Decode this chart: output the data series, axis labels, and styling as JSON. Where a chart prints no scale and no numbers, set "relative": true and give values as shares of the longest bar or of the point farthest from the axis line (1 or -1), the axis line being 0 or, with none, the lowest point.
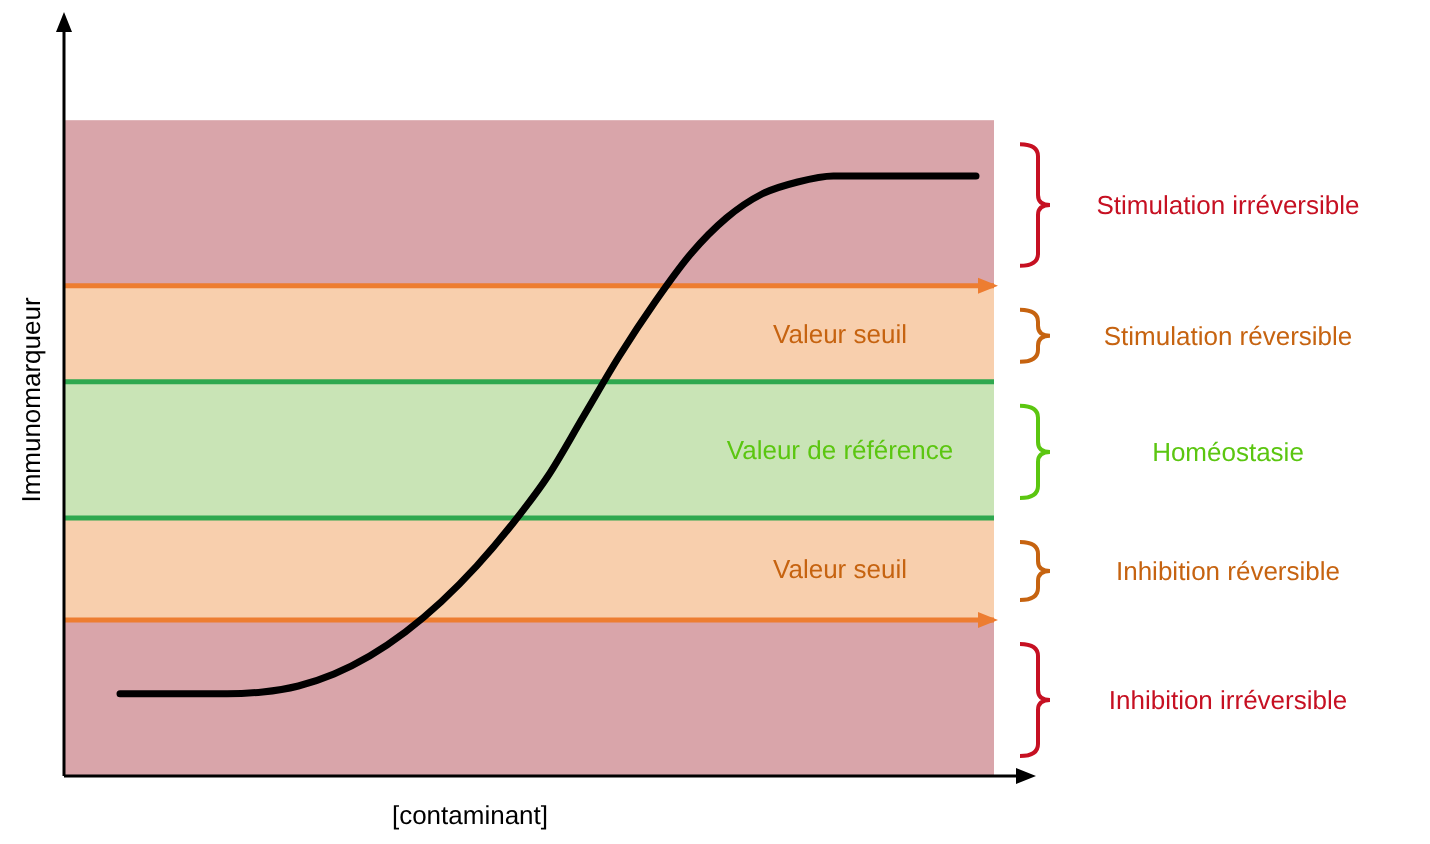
{
  "chart_data": {
    "type": "line",
    "relative": true,
    "xlabel": "[contaminant]",
    "ylabel": "Immunomarqueur",
    "marker": "none",
    "line_style": "solid",
    "categories": [
      null,
      null,
      null,
      null,
      null,
      null,
      null,
      null,
      null,
      null,
      null,
      null,
      null,
      null,
      null,
      null,
      null,
      null,
      null,
      null,
      null,
      null,
      null,
      null,
      null
    ],
    "series": [
      {
        "color": "#000000",
        "values": [
          0.137,
          0.137,
          0.137,
          0.137,
          0.14,
          0.15,
          0.17,
          0.2,
          0.24,
          0.29,
          0.35,
          0.42,
          0.5,
          0.6,
          0.7,
          0.79,
          0.87,
          0.93,
          0.97,
          0.99,
          1,
          1,
          1,
          1,
          1
        ]
      }
    ],
    "bands": [
      {
        "axis": "y",
        "from": 0.817,
        "to": 1.093,
        "color": "#d9a5aa"
      },
      {
        "axis": "y",
        "from": 0.657,
        "to": 0.817,
        "label": "Valeur seuil",
        "color": "#f8cfad"
      },
      {
        "axis": "y",
        "from": 0.43,
        "to": 0.657,
        "label": "Valeur de référence",
        "color": "#c9e4b6"
      },
      {
        "axis": "y",
        "from": 0.26,
        "to": 0.43,
        "label": "Valeur seuil",
        "color": "#f8cfad"
      },
      {
        "axis": "y",
        "from": 0,
        "to": 0.26,
        "color": "#d9a5aa"
      }
    ],
    "ref_lines": [
      {
        "axis": "y",
        "value": 0.817,
        "color": "#ed7d31"
      },
      {
        "axis": "y",
        "value": 0.657,
        "color": "#2fa84f"
      },
      {
        "axis": "y",
        "value": 0.43,
        "color": "#2fa84f"
      },
      {
        "axis": "y",
        "value": 0.26,
        "color": "#ed7d31"
      }
    ],
    "annotations": [
      "Stimulation irréversible",
      "Stimulation réversible",
      "Homéostasie",
      "Inhibition réversible",
      "Inhibition irréversible"
    ]
  }
}
